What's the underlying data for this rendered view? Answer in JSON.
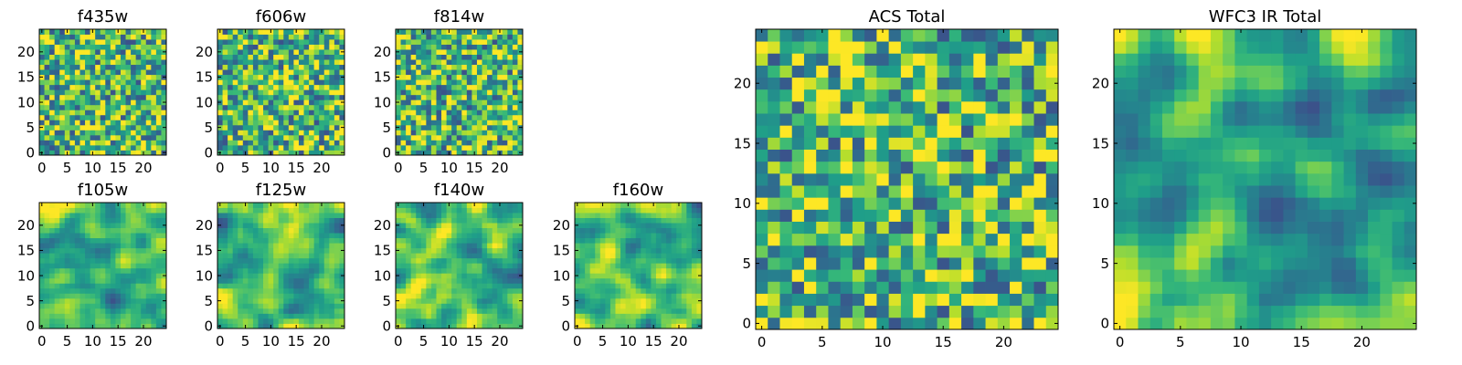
{
  "chart_data": [
    {
      "type": "heatmap",
      "title": "f435w",
      "grid_size": 25,
      "xticks": [
        "0",
        "5",
        "10",
        "15",
        "20"
      ],
      "yticks": [
        "0",
        "5",
        "10",
        "15",
        "20"
      ],
      "colormap": "viridis"
    },
    {
      "type": "heatmap",
      "title": "f606w",
      "grid_size": 25,
      "xticks": [
        "0",
        "5",
        "10",
        "15",
        "20"
      ],
      "yticks": [
        "0",
        "5",
        "10",
        "15",
        "20"
      ],
      "colormap": "viridis"
    },
    {
      "type": "heatmap",
      "title": "f814w",
      "grid_size": 25,
      "xticks": [
        "0",
        "5",
        "10",
        "15",
        "20"
      ],
      "yticks": [
        "0",
        "5",
        "10",
        "15",
        "20"
      ],
      "colormap": "viridis"
    },
    {
      "type": "heatmap",
      "title": "f105w",
      "grid_size": 25,
      "xticks": [
        "0",
        "5",
        "10",
        "15",
        "20"
      ],
      "yticks": [
        "0",
        "5",
        "10",
        "15",
        "20"
      ],
      "colormap": "viridis"
    },
    {
      "type": "heatmap",
      "title": "f125w",
      "grid_size": 25,
      "xticks": [
        "0",
        "5",
        "10",
        "15",
        "20"
      ],
      "yticks": [
        "0",
        "5",
        "10",
        "15",
        "20"
      ],
      "colormap": "viridis"
    },
    {
      "type": "heatmap",
      "title": "f140w",
      "grid_size": 25,
      "xticks": [
        "0",
        "5",
        "10",
        "15",
        "20"
      ],
      "yticks": [
        "0",
        "5",
        "10",
        "15",
        "20"
      ],
      "colormap": "viridis"
    },
    {
      "type": "heatmap",
      "title": "f160w",
      "grid_size": 25,
      "xticks": [
        "0",
        "5",
        "10",
        "15",
        "20"
      ],
      "yticks": [
        "0",
        "5",
        "10",
        "15",
        "20"
      ],
      "colormap": "viridis"
    },
    {
      "type": "heatmap",
      "title": "ACS Total",
      "grid_size": 25,
      "xticks": [
        "0",
        "5",
        "10",
        "15",
        "20"
      ],
      "yticks": [
        "0",
        "5",
        "10",
        "15",
        "20"
      ],
      "colormap": "viridis"
    },
    {
      "type": "heatmap",
      "title": "WFC3 IR Total",
      "grid_size": 25,
      "xticks": [
        "0",
        "5",
        "10",
        "15",
        "20"
      ],
      "yticks": [
        "0",
        "5",
        "10",
        "15",
        "20"
      ],
      "colormap": "viridis"
    }
  ]
}
